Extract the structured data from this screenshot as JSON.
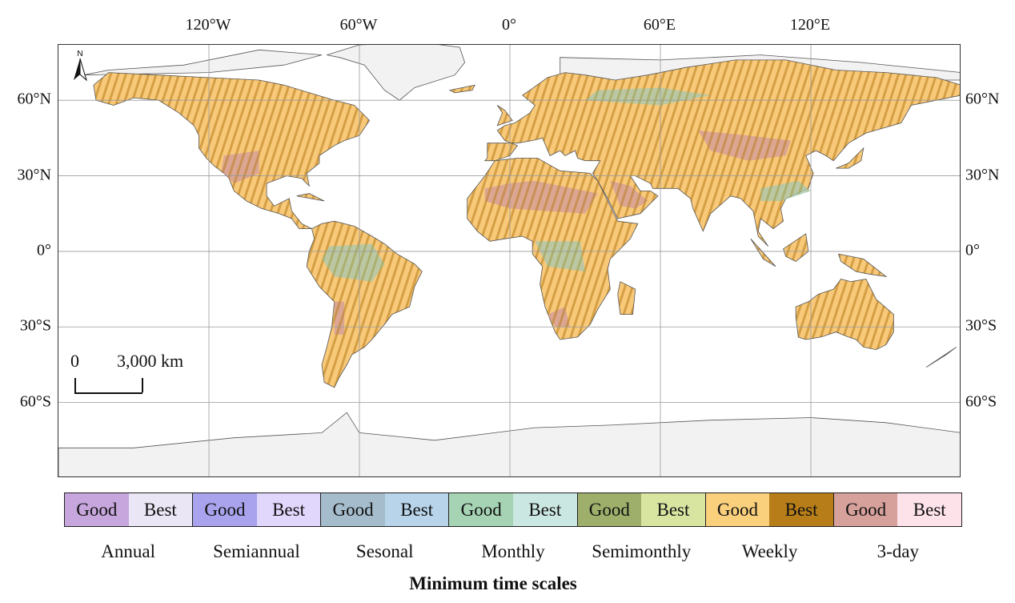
{
  "map": {
    "longitude_labels": [
      {
        "text": "120°W",
        "lon": -120
      },
      {
        "text": "60°W",
        "lon": -60
      },
      {
        "text": "0°",
        "lon": 0
      },
      {
        "text": "60°E",
        "lon": 60
      },
      {
        "text": "120°E",
        "lon": 120
      }
    ],
    "latitude_labels": [
      {
        "text": "60°N",
        "lat": 60
      },
      {
        "text": "30°N",
        "lat": 30
      },
      {
        "text": "0°",
        "lat": 0
      },
      {
        "text": "30°S",
        "lat": -30
      },
      {
        "text": "60°S",
        "lat": -60
      }
    ],
    "extent": {
      "lon_min": -180,
      "lon_max": 180,
      "lat_min": -90,
      "lat_max": 82
    },
    "scale_bar": {
      "zero": "0",
      "distance": "3,000 km"
    },
    "north_arrow": "N",
    "colors": {
      "ocean": "#ffffff",
      "land_nodata": "#f2f2f2",
      "coast": "#555555",
      "grid": "#9a9a9a",
      "weekly_good": "#f9c97a",
      "weekly_best": "#b57b17",
      "three_day_good": "#d29a9a",
      "monthly_good": "#a6d4b4",
      "sesonal_best": "#b4d5e9",
      "semimonthly_good": "#9cae6a"
    }
  },
  "legend": {
    "title": "Minimum time scales",
    "groups": [
      {
        "name": "Annual",
        "cells": [
          {
            "label": "Good",
            "color": "#c6a6dc"
          },
          {
            "label": "Best",
            "color": "#ebe6f5"
          }
        ]
      },
      {
        "name": "Semiannual",
        "cells": [
          {
            "label": "Good",
            "color": "#a8a3ec"
          },
          {
            "label": "Best",
            "color": "#e1d6fb"
          }
        ]
      },
      {
        "name": "Sesonal",
        "cells": [
          {
            "label": "Good",
            "color": "#a5bccc"
          },
          {
            "label": "Best",
            "color": "#b7d4ea"
          }
        ]
      },
      {
        "name": "Monthly",
        "cells": [
          {
            "label": "Good",
            "color": "#a5d3b4"
          },
          {
            "label": "Best",
            "color": "#cbe7e1"
          }
        ]
      },
      {
        "name": "Semimonthly",
        "cells": [
          {
            "label": "Good",
            "color": "#9daf6b"
          },
          {
            "label": "Best",
            "color": "#d7e5a1"
          }
        ]
      },
      {
        "name": "Weekly",
        "cells": [
          {
            "label": "Good",
            "color": "#fad07d"
          },
          {
            "label": "Best",
            "color": "#b67d18"
          }
        ]
      },
      {
        "name": "3-day",
        "cells": [
          {
            "label": "Good",
            "color": "#d6a09b"
          },
          {
            "label": "Best",
            "color": "#fde2ea"
          }
        ]
      }
    ]
  }
}
